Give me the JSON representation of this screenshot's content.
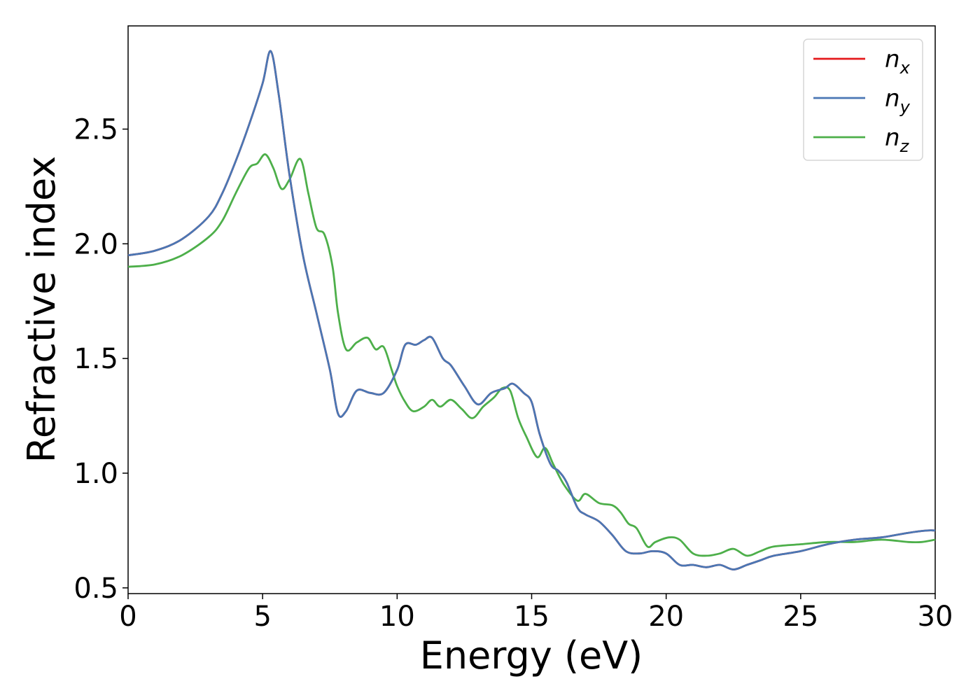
{
  "chart_data": {
    "type": "line",
    "xlabel": "Energy (eV)",
    "ylabel": "Refractive index",
    "xlim": [
      0,
      30
    ],
    "ylim": [
      0.475,
      2.95
    ],
    "xticks": [
      0,
      5,
      10,
      15,
      20,
      25,
      30
    ],
    "xtick_labels": [
      "0",
      "5",
      "10",
      "15",
      "20",
      "25",
      "30"
    ],
    "yticks": [
      0.5,
      1.0,
      1.5,
      2.0,
      2.5
    ],
    "ytick_labels": [
      "0.5",
      "1.0",
      "1.5",
      "2.0",
      "2.5"
    ],
    "grid": false,
    "legend_position": "top-right",
    "series": [
      {
        "name": "n",
        "sub": "x",
        "color": "#e41a1c",
        "x": [
          0,
          1,
          2,
          3,
          3.5,
          4,
          4.5,
          5,
          5.3,
          5.6,
          6,
          6.5,
          7,
          7.5,
          7.8,
          8.1,
          8.5,
          9,
          9.5,
          10,
          10.3,
          10.7,
          11,
          11.3,
          11.7,
          12,
          12.5,
          13,
          13.5,
          14,
          14.3,
          14.7,
          15,
          15.3,
          15.7,
          16,
          16.3,
          16.7,
          17,
          17.5,
          18,
          18.5,
          19,
          19.5,
          20,
          20.5,
          21,
          21.5,
          22,
          22.5,
          23,
          23.5,
          24,
          25,
          26,
          27,
          28,
          29,
          29.7,
          30
        ],
        "y": [
          1.95,
          1.97,
          2.02,
          2.12,
          2.22,
          2.36,
          2.52,
          2.7,
          2.84,
          2.65,
          2.3,
          1.95,
          1.7,
          1.45,
          1.26,
          1.27,
          1.36,
          1.35,
          1.35,
          1.45,
          1.56,
          1.56,
          1.58,
          1.59,
          1.5,
          1.47,
          1.38,
          1.3,
          1.35,
          1.37,
          1.39,
          1.35,
          1.31,
          1.17,
          1.04,
          1.01,
          0.96,
          0.85,
          0.82,
          0.79,
          0.73,
          0.66,
          0.65,
          0.66,
          0.65,
          0.6,
          0.6,
          0.59,
          0.6,
          0.58,
          0.6,
          0.62,
          0.64,
          0.66,
          0.69,
          0.71,
          0.72,
          0.74,
          0.75,
          0.75
        ]
      },
      {
        "name": "n",
        "sub": "y",
        "color": "#4a77b4",
        "x": [
          0,
          1,
          2,
          3,
          3.5,
          4,
          4.5,
          5,
          5.3,
          5.6,
          6,
          6.5,
          7,
          7.5,
          7.8,
          8.1,
          8.5,
          9,
          9.5,
          10,
          10.3,
          10.7,
          11,
          11.3,
          11.7,
          12,
          12.5,
          13,
          13.5,
          14,
          14.3,
          14.7,
          15,
          15.3,
          15.7,
          16,
          16.3,
          16.7,
          17,
          17.5,
          18,
          18.5,
          19,
          19.5,
          20,
          20.5,
          21,
          21.5,
          22,
          22.5,
          23,
          23.5,
          24,
          25,
          26,
          27,
          28,
          29,
          29.7,
          30
        ],
        "y": [
          1.95,
          1.97,
          2.02,
          2.12,
          2.22,
          2.36,
          2.52,
          2.7,
          2.84,
          2.65,
          2.3,
          1.95,
          1.7,
          1.45,
          1.26,
          1.27,
          1.36,
          1.35,
          1.35,
          1.45,
          1.56,
          1.56,
          1.58,
          1.59,
          1.5,
          1.47,
          1.38,
          1.3,
          1.35,
          1.37,
          1.39,
          1.35,
          1.31,
          1.17,
          1.04,
          1.01,
          0.96,
          0.85,
          0.82,
          0.79,
          0.73,
          0.66,
          0.65,
          0.66,
          0.65,
          0.6,
          0.6,
          0.59,
          0.6,
          0.58,
          0.6,
          0.62,
          0.64,
          0.66,
          0.69,
          0.71,
          0.72,
          0.74,
          0.75,
          0.75
        ]
      },
      {
        "name": "n",
        "sub": "z",
        "color": "#4daf4a",
        "x": [
          0,
          1,
          2,
          3,
          3.5,
          4,
          4.5,
          4.8,
          5.1,
          5.4,
          5.7,
          6,
          6.4,
          6.7,
          7,
          7.3,
          7.6,
          7.8,
          8.1,
          8.5,
          8.9,
          9.2,
          9.5,
          9.8,
          10,
          10.3,
          10.6,
          11,
          11.3,
          11.6,
          12,
          12.4,
          12.8,
          13.2,
          13.6,
          13.9,
          14.2,
          14.5,
          14.8,
          15.2,
          15.5,
          15.8,
          16.2,
          16.7,
          17,
          17.5,
          18,
          18.3,
          18.6,
          18.9,
          19.3,
          19.6,
          20.1,
          20.5,
          21,
          21.5,
          22,
          22.5,
          23,
          23.5,
          24,
          25,
          26,
          27,
          28,
          29,
          29.5,
          30
        ],
        "y": [
          1.9,
          1.91,
          1.95,
          2.03,
          2.1,
          2.22,
          2.33,
          2.35,
          2.39,
          2.33,
          2.24,
          2.28,
          2.37,
          2.22,
          2.07,
          2.04,
          1.9,
          1.7,
          1.54,
          1.57,
          1.59,
          1.54,
          1.55,
          1.45,
          1.38,
          1.31,
          1.27,
          1.29,
          1.32,
          1.29,
          1.32,
          1.28,
          1.24,
          1.29,
          1.33,
          1.37,
          1.36,
          1.24,
          1.16,
          1.07,
          1.11,
          1.04,
          0.95,
          0.88,
          0.91,
          0.87,
          0.86,
          0.83,
          0.78,
          0.76,
          0.68,
          0.7,
          0.72,
          0.71,
          0.65,
          0.64,
          0.65,
          0.67,
          0.64,
          0.66,
          0.68,
          0.69,
          0.7,
          0.7,
          0.71,
          0.7,
          0.7,
          0.71
        ]
      }
    ]
  }
}
